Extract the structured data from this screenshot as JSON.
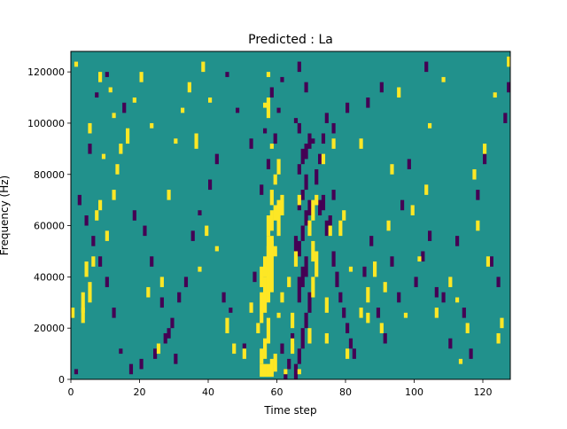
{
  "chart_data": {
    "type": "heatmap",
    "title": "Predicted : La",
    "xlabel": "Time step",
    "ylabel": "Frequency (Hz)",
    "xlim": [
      0,
      128
    ],
    "ylim": [
      0,
      128000
    ],
    "x_ticks": [
      0,
      20,
      40,
      60,
      80,
      100,
      120
    ],
    "y_ticks": [
      0,
      20000,
      40000,
      60000,
      80000,
      100000,
      120000
    ],
    "x_tick_labels": [
      "0",
      "20",
      "40",
      "60",
      "80",
      "100",
      "120"
    ],
    "y_tick_labels": [
      "0",
      "20000",
      "40000",
      "60000",
      "80000",
      "100000",
      "120000"
    ],
    "grid": false,
    "colors": {
      "low": "#440154",
      "mid": "#21918c",
      "high": "#fde725"
    },
    "value_levels": [
      "low",
      "mid",
      "high"
    ],
    "background_level": "mid",
    "bins": {
      "time_steps": 128,
      "freq_bins": 128,
      "bin_hz": 1000
    },
    "high_cells": [
      [
        55,
        1000,
        6000
      ],
      [
        56,
        1000,
        6000
      ],
      [
        57,
        1000,
        6000
      ],
      [
        58,
        1000,
        8000
      ],
      [
        59,
        3000,
        10000
      ],
      [
        55,
        6000,
        12000
      ],
      [
        56,
        8000,
        16000
      ],
      [
        57,
        14000,
        24000
      ],
      [
        54,
        18000,
        22000
      ],
      [
        55,
        22000,
        34000
      ],
      [
        56,
        26000,
        40000
      ],
      [
        57,
        30000,
        52000
      ],
      [
        58,
        34000,
        56000
      ],
      [
        55,
        36000,
        44000
      ],
      [
        56,
        40000,
        48000
      ],
      [
        57,
        44000,
        56000
      ],
      [
        58,
        48000,
        54000
      ],
      [
        59,
        48000,
        52000
      ],
      [
        57,
        56000,
        64000
      ],
      [
        58,
        58000,
        66000
      ],
      [
        59,
        62000,
        68000
      ],
      [
        60,
        56000,
        70000
      ],
      [
        61,
        64000,
        72000
      ],
      [
        58,
        68000,
        74000
      ],
      [
        59,
        76000,
        80000
      ],
      [
        60,
        80000,
        86000
      ],
      [
        58,
        90000,
        92000
      ],
      [
        57,
        102000,
        110000
      ],
      [
        56,
        106000,
        108000
      ],
      [
        57,
        118000,
        120000
      ],
      [
        61,
        30000,
        34000
      ],
      [
        60,
        24000,
        26000
      ],
      [
        69,
        14000,
        20000
      ],
      [
        70,
        32000,
        40000
      ],
      [
        70,
        46000,
        54000
      ],
      [
        71,
        40000,
        50000
      ],
      [
        69,
        56000,
        62000
      ],
      [
        70,
        62000,
        70000
      ],
      [
        71,
        68000,
        72000
      ],
      [
        74,
        26000,
        32000
      ],
      [
        75,
        56000,
        60000
      ],
      [
        73,
        84000,
        88000
      ],
      [
        76,
        90000,
        94000
      ],
      [
        78,
        56000,
        62000
      ],
      [
        79,
        62000,
        66000
      ],
      [
        81,
        42000,
        44000
      ],
      [
        84,
        24000,
        28000
      ],
      [
        86,
        30000,
        36000
      ],
      [
        88,
        40000,
        46000
      ],
      [
        90,
        18000,
        22000
      ],
      [
        91,
        34000,
        38000
      ],
      [
        92,
        58000,
        62000
      ],
      [
        93,
        80000,
        84000
      ],
      [
        97,
        24000,
        26000
      ],
      [
        101,
        46000,
        48000
      ],
      [
        103,
        72000,
        76000
      ],
      [
        104,
        98000,
        100000
      ],
      [
        106,
        24000,
        28000
      ],
      [
        110,
        36000,
        40000
      ],
      [
        113,
        6000,
        8000
      ],
      [
        115,
        18000,
        22000
      ],
      [
        118,
        58000,
        62000
      ],
      [
        121,
        44000,
        48000
      ],
      [
        124,
        14000,
        18000
      ],
      [
        127,
        122000,
        126000
      ],
      [
        84,
        90000,
        94000
      ],
      [
        86,
        22000,
        26000
      ],
      [
        80,
        8000,
        12000
      ],
      [
        74,
        14000,
        18000
      ],
      [
        66,
        2000,
        4000
      ],
      [
        62,
        2000,
        4000
      ],
      [
        64,
        10000,
        16000
      ],
      [
        64,
        20000,
        26000
      ],
      [
        63,
        36000,
        40000
      ],
      [
        65,
        44000,
        50000
      ],
      [
        66,
        68000,
        72000
      ],
      [
        45,
        18000,
        24000
      ],
      [
        47,
        10000,
        14000
      ],
      [
        50,
        8000,
        12000
      ],
      [
        52,
        26000,
        30000
      ],
      [
        42,
        50000,
        52000
      ],
      [
        39,
        56000,
        60000
      ],
      [
        37,
        42000,
        44000
      ],
      [
        3,
        22000,
        28000
      ],
      [
        3,
        26000,
        34000
      ],
      [
        4,
        40000,
        46000
      ],
      [
        5,
        30000,
        38000
      ],
      [
        6,
        44000,
        48000
      ],
      [
        7,
        62000,
        66000
      ],
      [
        8,
        66000,
        70000
      ],
      [
        10,
        54000,
        58000
      ],
      [
        12,
        70000,
        74000
      ],
      [
        13,
        80000,
        84000
      ],
      [
        14,
        88000,
        92000
      ],
      [
        12,
        102000,
        104000
      ],
      [
        16,
        92000,
        98000
      ],
      [
        18,
        108000,
        110000
      ],
      [
        20,
        116000,
        120000
      ],
      [
        22,
        32000,
        36000
      ],
      [
        25,
        10000,
        14000
      ],
      [
        26,
        36000,
        40000
      ],
      [
        28,
        70000,
        74000
      ],
      [
        30,
        92000,
        94000
      ],
      [
        32,
        104000,
        106000
      ],
      [
        34,
        112000,
        116000
      ],
      [
        36,
        90000,
        96000
      ],
      [
        38,
        120000,
        124000
      ],
      [
        40,
        108000,
        110000
      ],
      [
        23,
        98000,
        100000
      ],
      [
        1,
        122000,
        124000
      ],
      [
        0,
        24000,
        28000
      ],
      [
        8,
        116000,
        120000
      ],
      [
        11,
        112000,
        114000
      ],
      [
        5,
        96000,
        100000
      ],
      [
        9,
        86000,
        88000
      ],
      [
        108,
        116000,
        118000
      ],
      [
        112,
        30000,
        32000
      ],
      [
        117,
        78000,
        82000
      ],
      [
        120,
        88000,
        92000
      ],
      [
        123,
        110000,
        112000
      ],
      [
        125,
        20000,
        24000
      ],
      [
        99,
        64000,
        68000
      ],
      [
        95,
        110000,
        114000
      ]
    ],
    "low_cells": [
      [
        62,
        0,
        4000
      ],
      [
        63,
        4000,
        8000
      ],
      [
        61,
        10000,
        14000
      ],
      [
        64,
        14000,
        18000
      ],
      [
        65,
        0,
        6000
      ],
      [
        66,
        6000,
        12000
      ],
      [
        67,
        12000,
        20000
      ],
      [
        68,
        20000,
        26000
      ],
      [
        69,
        26000,
        34000
      ],
      [
        66,
        30000,
        40000
      ],
      [
        67,
        36000,
        44000
      ],
      [
        68,
        40000,
        48000
      ],
      [
        66,
        48000,
        54000
      ],
      [
        65,
        50000,
        56000
      ],
      [
        67,
        54000,
        60000
      ],
      [
        68,
        60000,
        66000
      ],
      [
        69,
        64000,
        70000
      ],
      [
        66,
        66000,
        70000
      ],
      [
        67,
        70000,
        74000
      ],
      [
        68,
        74000,
        80000
      ],
      [
        66,
        80000,
        84000
      ],
      [
        67,
        84000,
        90000
      ],
      [
        68,
        86000,
        92000
      ],
      [
        69,
        90000,
        96000
      ],
      [
        70,
        92000,
        94000
      ],
      [
        66,
        96000,
        100000
      ],
      [
        65,
        100000,
        102000
      ],
      [
        66,
        120000,
        124000
      ],
      [
        68,
        112000,
        116000
      ],
      [
        72,
        64000,
        70000
      ],
      [
        73,
        66000,
        72000
      ],
      [
        74,
        56000,
        62000
      ],
      [
        75,
        60000,
        64000
      ],
      [
        76,
        44000,
        50000
      ],
      [
        77,
        36000,
        42000
      ],
      [
        78,
        30000,
        34000
      ],
      [
        79,
        24000,
        28000
      ],
      [
        80,
        18000,
        22000
      ],
      [
        81,
        12000,
        16000
      ],
      [
        82,
        8000,
        12000
      ],
      [
        76,
        70000,
        74000
      ],
      [
        71,
        76000,
        82000
      ],
      [
        72,
        84000,
        88000
      ],
      [
        73,
        92000,
        96000
      ],
      [
        74,
        100000,
        104000
      ],
      [
        85,
        40000,
        44000
      ],
      [
        87,
        52000,
        56000
      ],
      [
        89,
        24000,
        28000
      ],
      [
        91,
        14000,
        18000
      ],
      [
        93,
        44000,
        48000
      ],
      [
        95,
        30000,
        34000
      ],
      [
        96,
        66000,
        70000
      ],
      [
        98,
        82000,
        86000
      ],
      [
        100,
        36000,
        40000
      ],
      [
        102,
        46000,
        50000
      ],
      [
        104,
        54000,
        58000
      ],
      [
        106,
        32000,
        36000
      ],
      [
        108,
        30000,
        34000
      ],
      [
        110,
        12000,
        16000
      ],
      [
        112,
        52000,
        56000
      ],
      [
        114,
        24000,
        28000
      ],
      [
        116,
        8000,
        12000
      ],
      [
        118,
        70000,
        74000
      ],
      [
        120,
        84000,
        88000
      ],
      [
        122,
        44000,
        48000
      ],
      [
        124,
        36000,
        40000
      ],
      [
        126,
        100000,
        104000
      ],
      [
        127,
        112000,
        116000
      ],
      [
        103,
        120000,
        124000
      ],
      [
        90,
        112000,
        116000
      ],
      [
        86,
        106000,
        110000
      ],
      [
        80,
        104000,
        108000
      ],
      [
        76,
        96000,
        100000
      ],
      [
        58,
        110000,
        114000
      ],
      [
        60,
        104000,
        106000
      ],
      [
        56,
        96000,
        98000
      ],
      [
        52,
        90000,
        94000
      ],
      [
        48,
        104000,
        106000
      ],
      [
        45,
        118000,
        120000
      ],
      [
        42,
        84000,
        88000
      ],
      [
        40,
        74000,
        78000
      ],
      [
        37,
        64000,
        66000
      ],
      [
        35,
        54000,
        58000
      ],
      [
        33,
        36000,
        40000
      ],
      [
        31,
        30000,
        34000
      ],
      [
        29,
        20000,
        24000
      ],
      [
        27,
        14000,
        18000
      ],
      [
        24,
        8000,
        12000
      ],
      [
        20,
        4000,
        8000
      ],
      [
        17,
        2000,
        6000
      ],
      [
        14,
        10000,
        12000
      ],
      [
        12,
        24000,
        28000
      ],
      [
        10,
        36000,
        40000
      ],
      [
        8,
        44000,
        48000
      ],
      [
        6,
        52000,
        56000
      ],
      [
        4,
        60000,
        64000
      ],
      [
        2,
        68000,
        72000
      ],
      [
        1,
        2000,
        4000
      ],
      [
        5,
        88000,
        92000
      ],
      [
        7,
        110000,
        112000
      ],
      [
        10,
        118000,
        120000
      ],
      [
        15,
        104000,
        108000
      ],
      [
        18,
        62000,
        66000
      ],
      [
        21,
        56000,
        60000
      ],
      [
        23,
        44000,
        48000
      ],
      [
        26,
        28000,
        32000
      ],
      [
        28,
        16000,
        20000
      ],
      [
        30,
        6000,
        10000
      ],
      [
        44,
        30000,
        34000
      ],
      [
        46,
        26000,
        28000
      ],
      [
        50,
        12000,
        14000
      ],
      [
        53,
        38000,
        42000
      ],
      [
        55,
        72000,
        76000
      ],
      [
        57,
        82000,
        86000
      ],
      [
        59,
        92000,
        96000
      ],
      [
        61,
        116000,
        118000
      ]
    ]
  }
}
